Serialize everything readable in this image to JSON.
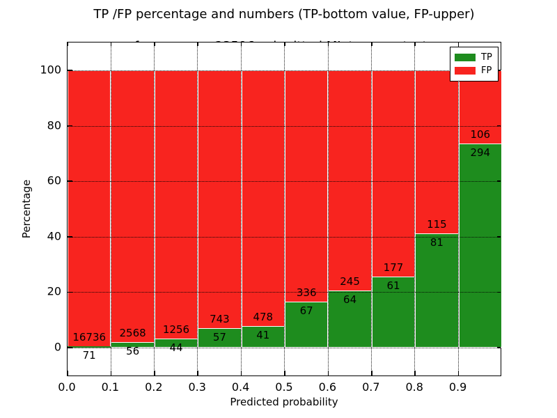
{
  "title": {
    "line1": "TP /FP percentage and numbers (TP-bottom value, FP-upper)",
    "line2": "from among 23596 submitted ML-type contacts"
  },
  "axes": {
    "xlabel": "Predicted probability",
    "ylabel": "Percentage",
    "xtick_labels": [
      "0.0",
      "0.1",
      "0.2",
      "0.3",
      "0.4",
      "0.5",
      "0.6",
      "0.7",
      "0.8",
      "0.9"
    ],
    "ytick_values": [
      0,
      20,
      40,
      60,
      80,
      100
    ]
  },
  "legend": {
    "items": [
      {
        "label": "TP",
        "color": "#1e8c1e"
      },
      {
        "label": "FP",
        "color": "#f8241f"
      }
    ]
  },
  "chart_data": {
    "type": "bar",
    "stacked": true,
    "normalized_to_percent": true,
    "title": "TP /FP percentage and numbers (TP-bottom value, FP-upper) from among 23596 submitted ML-type contacts",
    "xlabel": "Predicted probability",
    "ylabel": "Percentage",
    "xlim": [
      0.0,
      1.0
    ],
    "ylim": [
      -10.5,
      110
    ],
    "grid": "dotted both axes",
    "legend_position": "upper right",
    "total_contacts": 23596,
    "categories": [
      "0.0-0.1",
      "0.1-0.2",
      "0.2-0.3",
      "0.3-0.4",
      "0.4-0.5",
      "0.5-0.6",
      "0.6-0.7",
      "0.7-0.8",
      "0.8-0.9",
      "0.9-1.0"
    ],
    "bin_starts": [
      0.0,
      0.1,
      0.2,
      0.3,
      0.4,
      0.5,
      0.6,
      0.7,
      0.8,
      0.9
    ],
    "series": [
      {
        "name": "TP",
        "color": "#1e8c1e",
        "values": [
          71,
          56,
          44,
          57,
          41,
          67,
          64,
          61,
          81,
          294
        ]
      },
      {
        "name": "FP",
        "color": "#f8241f",
        "values": [
          16736,
          2568,
          1256,
          743,
          478,
          336,
          245,
          177,
          115,
          106
        ]
      }
    ],
    "tp_percent_of_bin": [
      0.42,
      2.13,
      3.38,
      7.13,
      7.9,
      16.63,
      20.71,
      25.63,
      41.33,
      73.5
    ]
  }
}
